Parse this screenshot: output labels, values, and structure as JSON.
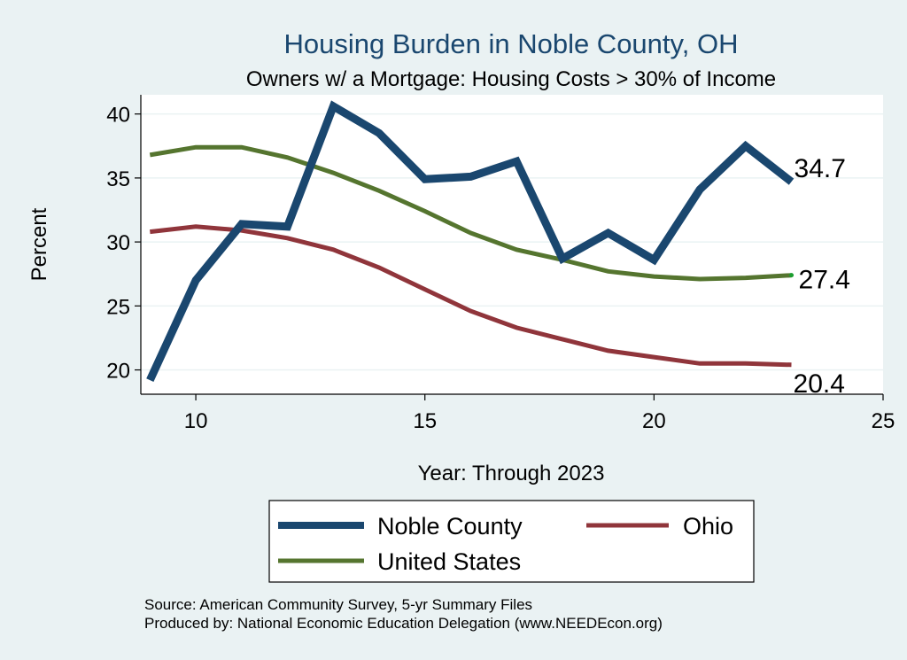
{
  "chart_data": {
    "type": "line",
    "title": "Housing Burden in Noble County, OH",
    "subtitle": "Owners w/ a Mortgage: Housing Costs > 30% of Income",
    "xlabel": "Year: Through 2023",
    "ylabel": "Percent",
    "xlim": [
      8.8,
      25
    ],
    "ylim": [
      18.1,
      41.5
    ],
    "xticks": [
      10,
      15,
      20,
      25
    ],
    "yticks": [
      20,
      25,
      30,
      35,
      40
    ],
    "x": [
      9,
      10,
      11,
      12,
      13,
      14,
      15,
      16,
      17,
      18,
      19,
      20,
      21,
      22,
      23
    ],
    "series": [
      {
        "name": "Noble County",
        "color": "#1a476f",
        "values": [
          19.2,
          27.0,
          31.4,
          31.2,
          40.6,
          38.5,
          34.9,
          35.1,
          36.3,
          28.7,
          30.7,
          28.6,
          34.1,
          37.5,
          34.7
        ],
        "end_label": "34.7"
      },
      {
        "name": "Ohio",
        "color": "#90353b",
        "values": [
          30.8,
          31.2,
          30.9,
          30.3,
          29.4,
          28.0,
          26.3,
          24.6,
          23.3,
          22.4,
          21.5,
          21.0,
          20.5,
          20.5,
          20.4
        ],
        "end_label": "20.4"
      },
      {
        "name": "United States",
        "color": "#55752f",
        "values": [
          36.8,
          37.4,
          37.4,
          36.6,
          35.4,
          34.0,
          32.4,
          30.7,
          29.4,
          28.6,
          27.7,
          27.3,
          27.1,
          27.2,
          27.4
        ],
        "end_label": "27.4"
      }
    ],
    "legend": {
      "position": "bottom",
      "entries": [
        "Noble County",
        "Ohio",
        "United States"
      ]
    },
    "notes": [
      "Source: American Community Survey, 5-yr Summary Files",
      "Produced by: National Economic Education Delegation (www.NEEDEcon.org)"
    ]
  }
}
